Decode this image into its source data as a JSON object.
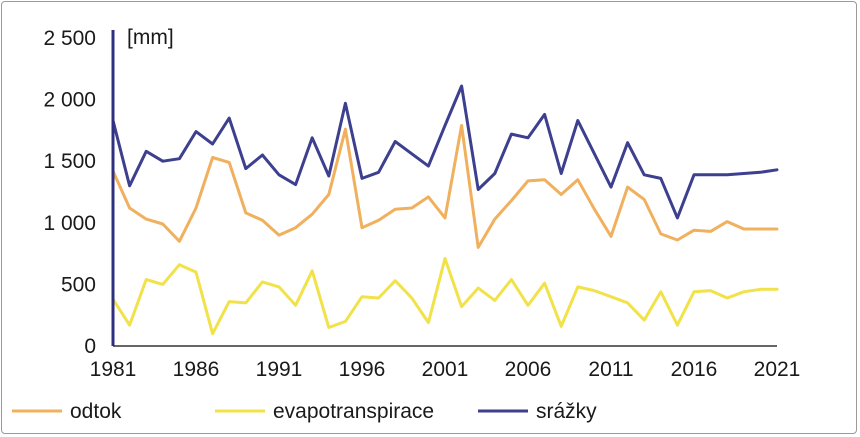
{
  "chart_data": {
    "type": "line",
    "unit_label": "[mm]",
    "ylim": [
      0,
      2500
    ],
    "yticks": [
      0,
      500,
      1000,
      1500,
      2000,
      2500
    ],
    "ytick_labels": [
      "0",
      "500",
      "1 000",
      "1 500",
      "2 000",
      "2 500"
    ],
    "xlim": [
      1981,
      2021
    ],
    "xticks": [
      1981,
      1986,
      1991,
      1996,
      2001,
      2006,
      2011,
      2016,
      2021
    ],
    "xtick_labels": [
      "1981",
      "1986",
      "1991",
      "1996",
      "2001",
      "2006",
      "2011",
      "2016",
      "2021"
    ],
    "grid": false,
    "legend_position": "bottom",
    "x": [
      1981,
      1982,
      1983,
      1984,
      1985,
      1986,
      1987,
      1988,
      1989,
      1990,
      1991,
      1992,
      1993,
      1994,
      1995,
      1996,
      1997,
      1998,
      1999,
      2000,
      2001,
      2002,
      2003,
      2004,
      2005,
      2006,
      2007,
      2008,
      2009,
      2010,
      2011,
      2012,
      2013,
      2014,
      2015,
      2016,
      2017,
      2018,
      2019,
      2020,
      2021
    ],
    "series": [
      {
        "name": "odtok",
        "color": "#f0b05e",
        "values": [
          1420,
          1120,
          1030,
          990,
          850,
          1120,
          1530,
          1490,
          1080,
          1020,
          900,
          960,
          1070,
          1230,
          1760,
          960,
          1020,
          1110,
          1120,
          1210,
          1040,
          1790,
          800,
          1030,
          1180,
          1340,
          1350,
          1230,
          1350,
          1110,
          890,
          1290,
          1190,
          910,
          860,
          940,
          930,
          1010,
          950,
          950,
          950
        ]
      },
      {
        "name": "evapotranspirace",
        "color": "#f2e24a",
        "values": [
          380,
          170,
          540,
          500,
          660,
          600,
          100,
          360,
          350,
          520,
          480,
          330,
          610,
          150,
          200,
          400,
          390,
          530,
          390,
          190,
          710,
          320,
          470,
          370,
          540,
          330,
          510,
          160,
          480,
          450,
          400,
          350,
          210,
          440,
          170,
          440,
          450,
          390,
          440,
          460,
          460
        ]
      },
      {
        "name": "srážky",
        "color": "#3d3f8f",
        "values": [
          1830,
          1300,
          1580,
          1500,
          1520,
          1740,
          1640,
          1850,
          1440,
          1550,
          1390,
          1310,
          1690,
          1380,
          1970,
          1360,
          1410,
          1660,
          1560,
          1460,
          1790,
          2110,
          1270,
          1400,
          1720,
          1690,
          1880,
          1400,
          1830,
          1560,
          1290,
          1650,
          1390,
          1360,
          1040,
          1390,
          1390,
          1390,
          1400,
          1410,
          1430
        ]
      }
    ]
  }
}
